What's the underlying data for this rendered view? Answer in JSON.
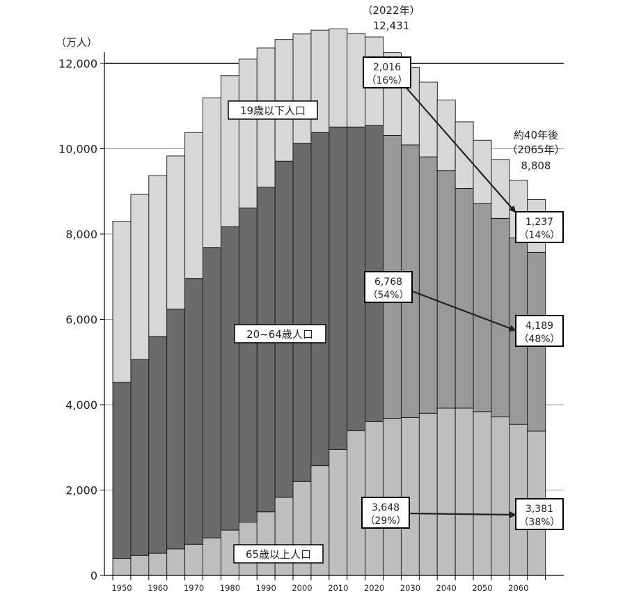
{
  "chart_data": {
    "type": "bar",
    "stacked": true,
    "y_unit_label": "（万人）",
    "ylim": [
      0,
      12000
    ],
    "yticks": [
      "0",
      "2,000",
      "4,000",
      "6,000",
      "8,000",
      "10,000",
      "12,000"
    ],
    "ytick_values": [
      0,
      2000,
      4000,
      6000,
      8000,
      10000,
      12000
    ],
    "xtick_labels": [
      "1950",
      "1960",
      "1970",
      "1980",
      "1990",
      "2000",
      "2010",
      "2020",
      "2030",
      "2040",
      "2050",
      "2060"
    ],
    "categories": [
      1950,
      1955,
      1960,
      1965,
      1970,
      1975,
      1980,
      1985,
      1990,
      1995,
      2000,
      2005,
      2010,
      2015,
      2020,
      2025,
      2030,
      2035,
      2040,
      2045,
      2050,
      2055,
      2060,
      2065
    ],
    "totals": [
      8300,
      8930,
      9370,
      9830,
      10380,
      11190,
      11710,
      12100,
      12360,
      12560,
      12690,
      12780,
      12810,
      12700,
      12620,
      12250,
      11910,
      11560,
      11140,
      10630,
      10200,
      9750,
      9260,
      8808
    ],
    "series": [
      {
        "name": "65歳以上人口",
        "color": "#bebebe",
        "values": [
          400,
          470,
          520,
          620,
          730,
          880,
          1060,
          1250,
          1490,
          1830,
          2200,
          2570,
          2950,
          3390,
          3600,
          3680,
          3700,
          3800,
          3920,
          3920,
          3840,
          3720,
          3540,
          3381
        ]
      },
      {
        "name": "20~64歳人口",
        "color_projection": "#999999",
        "color": "#6b6b6b",
        "values": [
          4130,
          4590,
          5080,
          5620,
          6230,
          6800,
          7110,
          7360,
          7610,
          7880,
          7930,
          7810,
          7560,
          7120,
          6940,
          6630,
          6390,
          6010,
          5570,
          5150,
          4870,
          4650,
          4370,
          4189
        ]
      },
      {
        "name": "19歳以下人口",
        "color": "#d7d7d7",
        "values": [
          3770,
          3870,
          3770,
          3590,
          3420,
          3510,
          3540,
          3490,
          3260,
          2850,
          2560,
          2400,
          2300,
          2190,
          2080,
          1940,
          1820,
          1750,
          1650,
          1560,
          1490,
          1380,
          1350,
          1237
        ]
      }
    ],
    "projection_start": 2025,
    "annotations": {
      "peak_year": "（2022年）",
      "peak_value": "12,431",
      "future_line1": "約40年後",
      "future_line2": "（2065年）",
      "future_value": "8,808",
      "young_2022_value": "2,016",
      "young_2022_pct": "（16%）",
      "young_2065_value": "1,237",
      "young_2065_pct": "（14%）",
      "work_2022_value": "6,768",
      "work_2022_pct": "（54%）",
      "work_2065_value": "4,189",
      "work_2065_pct": "（48%）",
      "old_2022_value": "3,648",
      "old_2022_pct": "（29%）",
      "old_2065_value": "3,381",
      "old_2065_pct": "（38%）"
    }
  }
}
